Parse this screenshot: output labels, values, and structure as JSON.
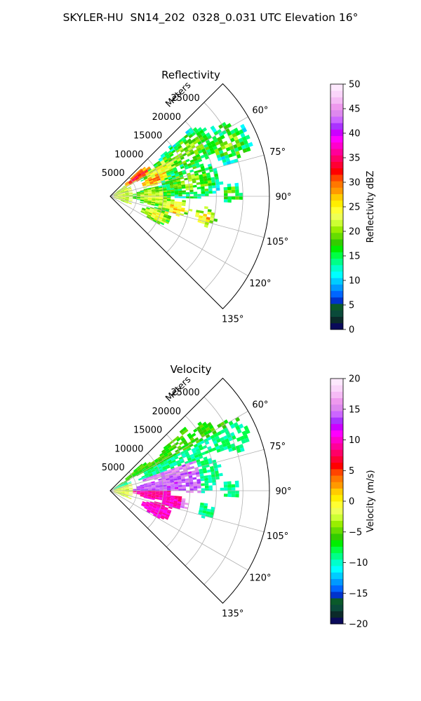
{
  "figure_title": "SKYLER-HU  SN14_202  0328_0.031 UTC Elevation 16°",
  "chart_data": [
    {
      "type": "heatmap",
      "projection": "polar-sector",
      "title": "Reflectivity",
      "radial_axis_label": "Meters",
      "radial_ticks": [
        "5000",
        "10000",
        "15000",
        "20000",
        "25000"
      ],
      "angular_ticks": [
        "60°",
        "75°",
        "90°",
        "105°",
        "120°",
        "135°"
      ],
      "radial_range": [
        0,
        30000
      ],
      "angular_range_deg": [
        45,
        135
      ],
      "grid": true,
      "colorbar": {
        "label": "Reflectivity dBZ",
        "range": [
          0,
          50
        ],
        "ticks": [
          "0",
          "5",
          "10",
          "15",
          "20",
          "25",
          "30",
          "35",
          "40",
          "45",
          "50"
        ],
        "colors": [
          "#0a0a5a",
          "#0b2a2a",
          "#0a4a3a",
          "#0a5a2a",
          "#0033cc",
          "#0066ff",
          "#0099ff",
          "#00ccff",
          "#00ffff",
          "#00ffcc",
          "#00ff88",
          "#00ff44",
          "#00ee00",
          "#33cc00",
          "#66dd00",
          "#99ee00",
          "#ccff33",
          "#eeff55",
          "#ffff33",
          "#ffee00",
          "#ffcc00",
          "#ff9900",
          "#ff7700",
          "#ff4400",
          "#ff0000",
          "#ff0033",
          "#ff0066",
          "#ff0099",
          "#ff00cc",
          "#ff00ff",
          "#cc00ff",
          "#aa33ff",
          "#cc66ff",
          "#dd88ee",
          "#ee99ee",
          "#f5bbf5",
          "#fad5fa",
          "#fde8fd"
        ]
      }
    },
    {
      "type": "heatmap",
      "projection": "polar-sector",
      "title": "Velocity",
      "radial_axis_label": "Meters",
      "radial_ticks": [
        "5000",
        "10000",
        "15000",
        "20000",
        "25000"
      ],
      "angular_ticks": [
        "60°",
        "75°",
        "90°",
        "105°",
        "120°",
        "135°"
      ],
      "radial_range": [
        0,
        30000
      ],
      "angular_range_deg": [
        45,
        135
      ],
      "grid": true,
      "colorbar": {
        "label": "Velocity (m/s)",
        "range": [
          -20,
          20
        ],
        "ticks": [
          "−20",
          "−15",
          "−10",
          "−5",
          "0",
          "5",
          "10",
          "15",
          "20"
        ],
        "colors": [
          "#0a0a5a",
          "#0b2a2a",
          "#0a4a3a",
          "#0a5a2a",
          "#0033cc",
          "#0066ff",
          "#0099ff",
          "#00ccff",
          "#00ffff",
          "#00ffcc",
          "#00ff88",
          "#00ff44",
          "#00ee00",
          "#33cc00",
          "#66dd00",
          "#99ee00",
          "#ccff33",
          "#eeff55",
          "#ffff33",
          "#ffee00",
          "#ffcc00",
          "#ff9900",
          "#ff7700",
          "#ff4400",
          "#ff0000",
          "#ff0033",
          "#ff0066",
          "#ff0099",
          "#ff00cc",
          "#ff00ff",
          "#cc00ff",
          "#aa33ff",
          "#cc66ff",
          "#dd88ee",
          "#ee99ee",
          "#f5bbf5",
          "#fad5fa",
          "#fde8fd"
        ]
      }
    }
  ]
}
